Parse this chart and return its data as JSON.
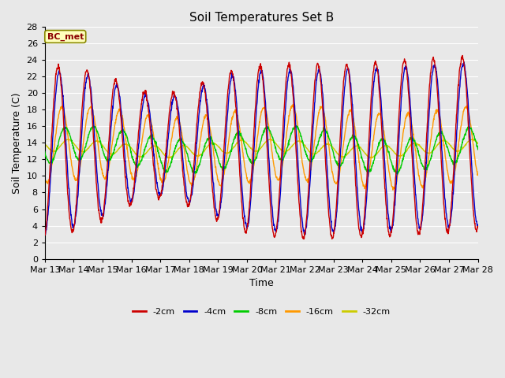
{
  "title": "Soil Temperatures Set B",
  "xlabel": "Time",
  "ylabel": "Soil Temperature (C)",
  "annotation": "BC_met",
  "ylim": [
    0,
    28
  ],
  "series_colors": [
    "#cc0000",
    "#0000cc",
    "#00cc00",
    "#ff9900",
    "#cccc00"
  ],
  "series_labels": [
    "-2cm",
    "-4cm",
    "-8cm",
    "-16cm",
    "-32cm"
  ],
  "bg_color": "#e8e8e8",
  "grid_color": "#ffffff",
  "tick_labels": [
    "Mar 13",
    "Mar 14",
    "Mar 15",
    "Mar 16",
    "Mar 17",
    "Mar 18",
    "Mar 19",
    "Mar 20",
    "Mar 21",
    "Mar 22",
    "Mar 23",
    "Mar 24",
    "Mar 25",
    "Mar 26",
    "Mar 27",
    "Mar 28"
  ],
  "n_points": 1500
}
